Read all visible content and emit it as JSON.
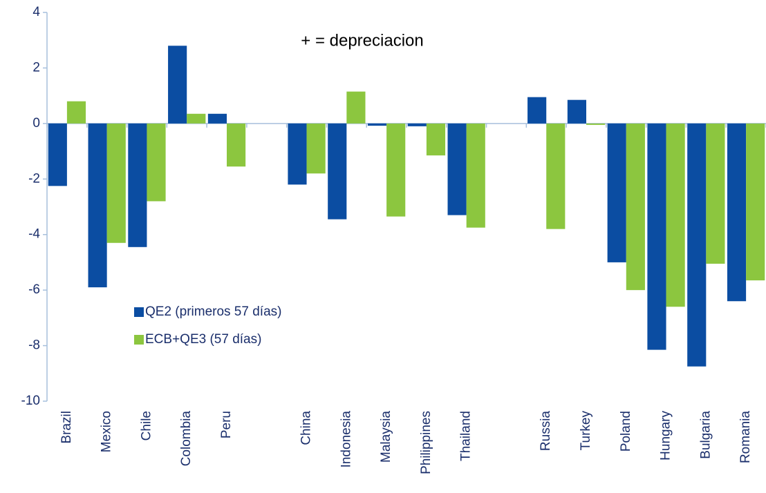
{
  "chart_data": {
    "type": "bar",
    "annotation": "+ = depreciacion",
    "categories": [
      "Brazil",
      "Mexico",
      "Chile",
      "Colombia",
      "Peru",
      null,
      "China",
      "Indonesia",
      "Malaysia",
      "Philippines",
      "Thailand",
      null,
      "Russia",
      "Turkey",
      "Poland",
      "Hungary",
      "Bulgaria",
      "Romania"
    ],
    "series": [
      {
        "name": "QE2 (primeros 57 días)",
        "color": "#0b4da2",
        "values": [
          -2.25,
          -5.9,
          -4.45,
          2.8,
          0.35,
          null,
          -2.2,
          -3.45,
          -0.08,
          -0.1,
          -3.3,
          null,
          0.95,
          0.85,
          -5.0,
          -8.15,
          -8.75,
          -6.4
        ]
      },
      {
        "name": "ECB+QE3 (57 días)",
        "color": "#8cc63f",
        "values": [
          0.8,
          -4.3,
          -2.8,
          0.35,
          -1.55,
          null,
          -1.8,
          1.15,
          -3.35,
          -1.15,
          -3.75,
          null,
          -3.8,
          -0.05,
          -6.0,
          -6.6,
          -5.05,
          -5.65
        ]
      }
    ],
    "ylim": [
      -10,
      4
    ],
    "yticks": [
      -10,
      -8,
      -6,
      -4,
      -2,
      0,
      2,
      4
    ],
    "grid": false
  }
}
